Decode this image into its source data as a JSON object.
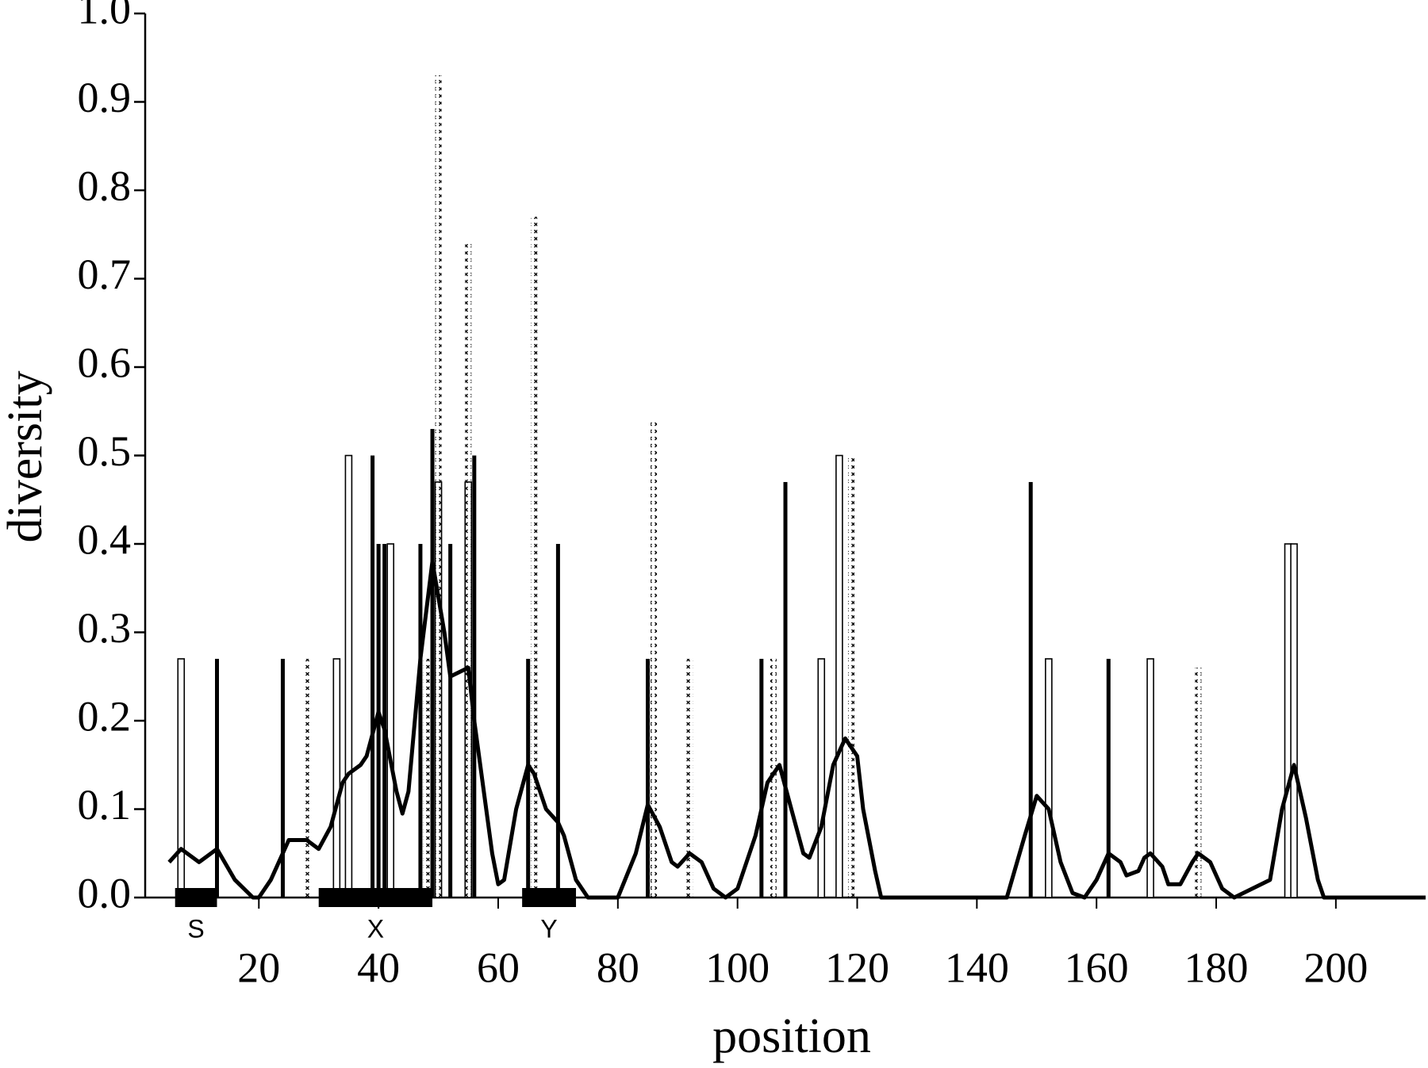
{
  "chart_data": {
    "type": "bar",
    "x_label": "position",
    "y_label": "diversity",
    "xlim": [
      1,
      215
    ],
    "ylim": [
      0,
      1
    ],
    "xticks": [
      20,
      40,
      60,
      80,
      100,
      120,
      140,
      160,
      180,
      200
    ],
    "yticks": [
      {
        "value": 0,
        "label": "0.0"
      },
      0.1,
      0.2,
      0.3,
      0.4,
      0.5,
      0.6,
      0.7,
      0.8,
      0.9,
      {
        "value": 1,
        "label": "1.0"
      }
    ],
    "series": [
      {
        "style": "open",
        "color": "#ffffff",
        "x": [
          7,
          33,
          35,
          42,
          50,
          55,
          114,
          117,
          152,
          169,
          192,
          193
        ],
        "values": [
          0.27,
          0.27,
          0.5,
          0.4,
          0.47,
          0.47,
          0.27,
          0.5,
          0.27,
          0.27,
          0.4,
          0.4
        ]
      },
      {
        "style": "solid",
        "color": "#000000",
        "x": [
          13,
          24,
          39,
          40,
          41,
          47,
          49,
          52,
          56,
          65,
          70,
          85,
          104,
          108,
          149,
          162
        ],
        "values": [
          0.27,
          0.27,
          0.5,
          0.4,
          0.4,
          0.4,
          0.53,
          0.4,
          0.5,
          0.27,
          0.4,
          0.27,
          0.27,
          0.47,
          0.47,
          0.27
        ]
      },
      {
        "style": "crossed",
        "color": "#000000",
        "x": [
          28,
          48,
          50,
          55,
          66,
          86,
          92,
          106,
          119,
          177
        ],
        "values": [
          0.27,
          0.27,
          0.93,
          0.74,
          0.77,
          0.54,
          0.27,
          0.27,
          0.5,
          0.26
        ]
      },
      {
        "type": "line",
        "color": "#000000",
        "x": [
          5,
          7,
          10,
          13,
          16,
          19,
          20,
          22,
          25,
          28,
          30,
          32,
          34,
          35,
          37,
          38,
          40,
          41,
          43,
          44,
          45,
          47,
          49,
          51,
          52,
          55,
          56,
          59,
          60,
          61,
          63,
          65,
          66,
          68,
          70,
          71,
          73,
          75,
          80,
          83,
          85,
          87,
          89,
          90,
          92,
          94,
          96,
          98,
          100,
          103,
          105,
          107,
          109,
          111,
          112,
          114,
          116,
          118,
          120,
          121,
          123,
          124,
          145,
          148,
          150,
          152,
          154,
          156,
          158,
          160,
          162,
          164,
          165,
          167,
          168,
          169,
          171,
          172,
          174,
          176,
          177,
          179,
          181,
          183,
          189,
          191,
          193,
          195,
          197,
          198,
          215
        ],
        "values": [
          0.04,
          0.055,
          0.04,
          0.055,
          0.02,
          0,
          0,
          0.02,
          0.065,
          0.065,
          0.055,
          0.08,
          0.13,
          0.14,
          0.15,
          0.16,
          0.21,
          0.19,
          0.12,
          0.095,
          0.12,
          0.27,
          0.38,
          0.3,
          0.25,
          0.26,
          0.2,
          0.05,
          0.015,
          0.02,
          0.1,
          0.15,
          0.14,
          0.1,
          0.085,
          0.07,
          0.02,
          0,
          0,
          0.05,
          0.105,
          0.08,
          0.04,
          0.035,
          0.05,
          0.04,
          0.01,
          0,
          0.01,
          0.07,
          0.13,
          0.15,
          0.1,
          0.05,
          0.045,
          0.08,
          0.15,
          0.18,
          0.16,
          0.1,
          0.03,
          0,
          0,
          0.07,
          0.115,
          0.1,
          0.04,
          0.005,
          0,
          0.02,
          0.05,
          0.04,
          0.025,
          0.03,
          0.045,
          0.05,
          0.035,
          0.015,
          0.015,
          0.04,
          0.05,
          0.04,
          0.01,
          0,
          0.02,
          0.1,
          0.15,
          0.09,
          0.02,
          0,
          0
        ]
      }
    ],
    "regions": [
      {
        "label": "S",
        "start": 6,
        "end": 13
      },
      {
        "label": "X",
        "start": 30,
        "end": 49
      },
      {
        "label": "Y",
        "start": 64,
        "end": 73
      }
    ]
  }
}
